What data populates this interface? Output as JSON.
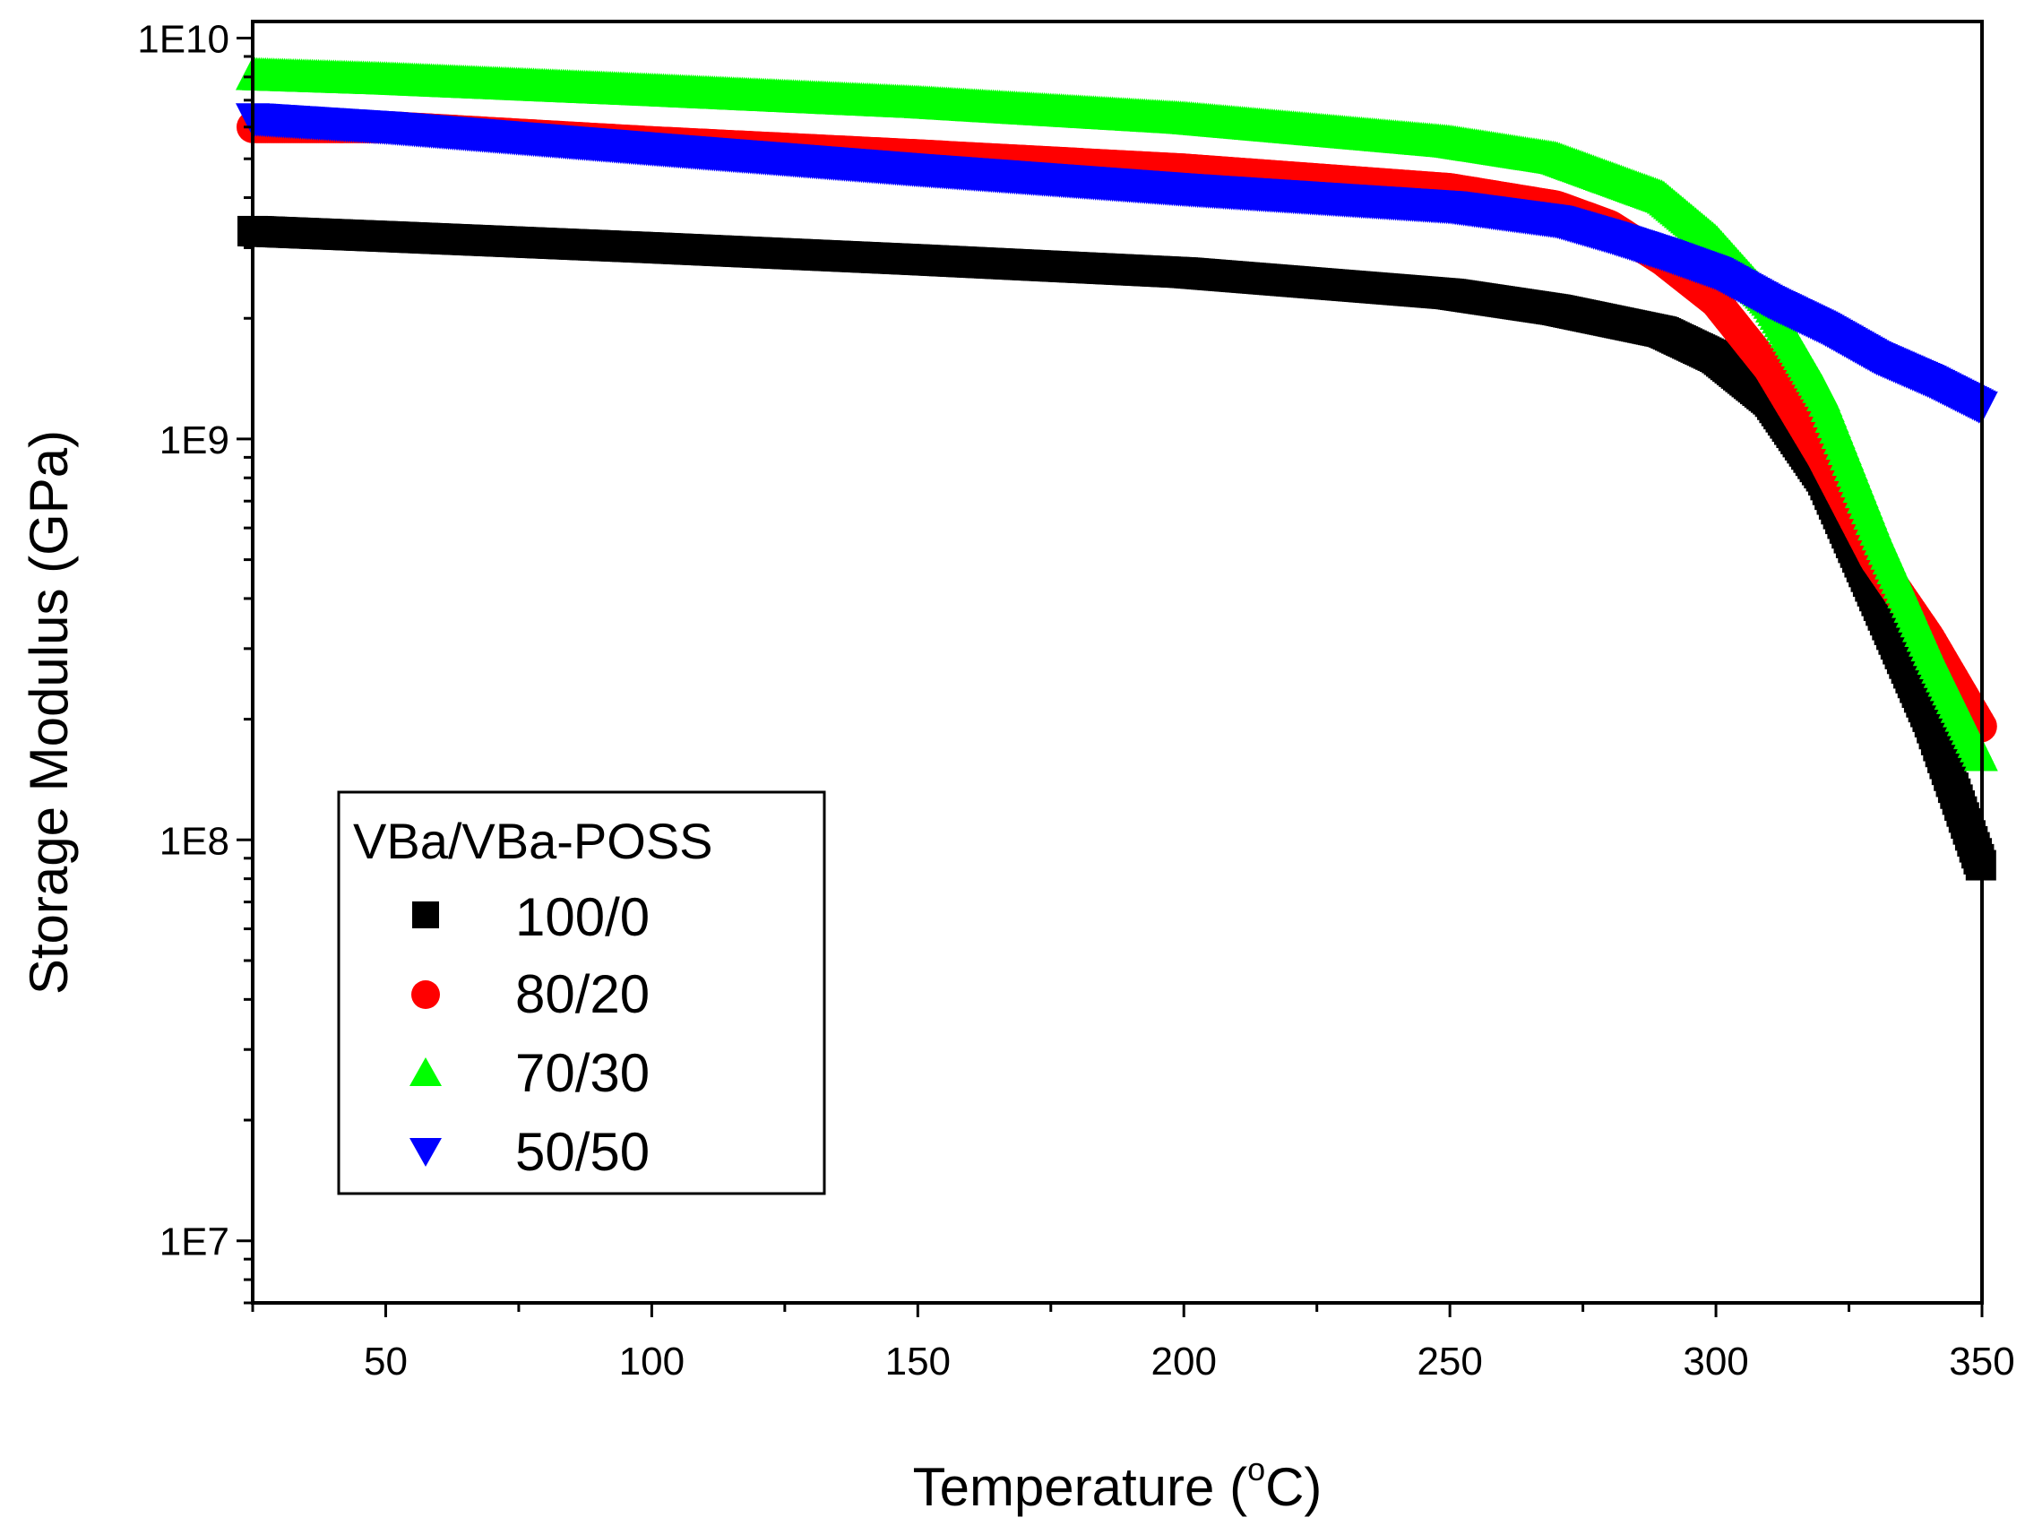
{
  "chart_data": {
    "type": "scatter",
    "title": "",
    "xlabel_main": "Temperature (",
    "xlabel_sup": "o",
    "xlabel_tail": "C)",
    "ylabel": "Storage Modulus (GPa)",
    "x_scale": "linear",
    "y_scale": "log",
    "xlim": [
      25,
      350
    ],
    "ylim": [
      7000000,
      11000000000
    ],
    "x_ticks": [
      50,
      100,
      150,
      200,
      250,
      300,
      350
    ],
    "x_tick_labels": [
      "50",
      "100",
      "150",
      "200",
      "250",
      "300",
      "350"
    ],
    "y_ticks": [
      10000000,
      100000000,
      1000000000,
      10000000000
    ],
    "y_tick_labels": [
      "1E7",
      "1E8",
      "1E9",
      "1E10"
    ],
    "legend": {
      "title": "VBa/VBa-POSS",
      "placement": "bottom-left"
    },
    "series": [
      {
        "name": "100/0",
        "marker": "square",
        "color": "#000000",
        "x": [
          25,
          50,
          100,
          150,
          200,
          250,
          270,
          290,
          300,
          310,
          320,
          330,
          340,
          350
        ],
        "y": [
          3300000000,
          3200000000,
          3000000000,
          2800000000,
          2600000000,
          2300000000,
          2100000000,
          1850000000,
          1600000000,
          1250000000,
          800000000,
          400000000,
          200000000,
          85000000
        ]
      },
      {
        "name": "80/20",
        "marker": "circle",
        "color": "#ff0000",
        "x": [
          25,
          50,
          100,
          150,
          200,
          250,
          270,
          280,
          290,
          300,
          310,
          320,
          330,
          340,
          350
        ],
        "y": [
          6000000000,
          6000000000,
          5500000000,
          5100000000,
          4700000000,
          4200000000,
          3800000000,
          3400000000,
          2800000000,
          2200000000,
          1500000000,
          900000000,
          500000000,
          320000000,
          190000000
        ]
      },
      {
        "name": "70/30",
        "marker": "triangle-up",
        "color": "#00ff00",
        "x": [
          25,
          50,
          100,
          150,
          200,
          250,
          270,
          290,
          300,
          310,
          320,
          330,
          340,
          350
        ],
        "y": [
          8100000000,
          7900000000,
          7400000000,
          6900000000,
          6300000000,
          5500000000,
          5000000000,
          4000000000,
          3100000000,
          2200000000,
          1300000000,
          600000000,
          300000000,
          160000000
        ]
      },
      {
        "name": "50/50",
        "marker": "triangle-down",
        "color": "#0000ff",
        "x": [
          25,
          50,
          100,
          150,
          200,
          250,
          270,
          280,
          290,
          300,
          310,
          320,
          330,
          340,
          350
        ],
        "y": [
          6300000000,
          6000000000,
          5300000000,
          4700000000,
          4200000000,
          3800000000,
          3500000000,
          3200000000,
          2900000000,
          2600000000,
          2200000000,
          1900000000,
          1600000000,
          1400000000,
          1200000000
        ]
      }
    ]
  }
}
